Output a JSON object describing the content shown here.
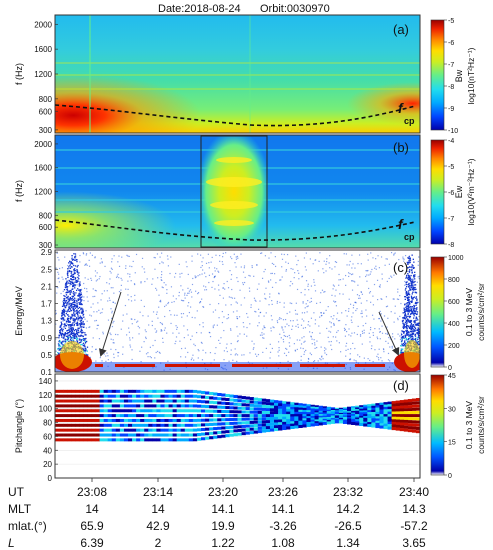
{
  "header": {
    "date": "Date:2018-08-24",
    "orbit": "Orbit:0030970"
  },
  "colors": {
    "colormap": [
      "#0000aa",
      "#0044ff",
      "#00aaff",
      "#22ddee",
      "#66ee88",
      "#ccee22",
      "#ffdd00",
      "#ff8800",
      "#ee2200",
      "#990000"
    ],
    "dashed_line": "#111111",
    "arrow": "#333333"
  },
  "chart_data": [
    {
      "panel": "(a)",
      "type": "heatmap",
      "ylabel": "f (Hz)",
      "y_ticks": [
        "2000",
        "1600",
        "1200",
        "800",
        "600",
        "300"
      ],
      "y_tick_values": [
        2000,
        1600,
        1200,
        800,
        600,
        300
      ],
      "ylim": [
        250,
        2150
      ],
      "x_range_minutes": [
        "23:08",
        "23:40"
      ],
      "curve_label": "f",
      "curve_subscript": "cp",
      "fcp_curve": {
        "x": [
          "23:08",
          "23:14",
          "23:20",
          "23:26",
          "23:32",
          "23:38",
          "23:40"
        ],
        "y": [
          700,
          620,
          490,
          400,
          470,
          620,
          700
        ]
      },
      "colorbar": {
        "title": "Bw",
        "unit": "log10(nT²Hz⁻¹)",
        "tick_labels": [
          "-5",
          "-6",
          "-7",
          "-8",
          "-9",
          "-10"
        ],
        "range": [
          -10,
          -5
        ]
      }
    },
    {
      "panel": "(b)",
      "type": "heatmap",
      "ylabel": "f (Hz)",
      "y_ticks": [
        "2000",
        "1600",
        "1200",
        "800",
        "600",
        "300"
      ],
      "y_tick_values": [
        2000,
        1600,
        1200,
        800,
        600,
        300
      ],
      "ylim": [
        250,
        2150
      ],
      "curve_label": "f",
      "curve_subscript": "cp",
      "highlight_box": {
        "x": [
          "23:20",
          "23:26"
        ]
      },
      "colorbar": {
        "title": "Ew",
        "unit": "log10(V²m⁻²Hz⁻¹)",
        "tick_labels": [
          "-4",
          "-5",
          "-6",
          "-7",
          "-8"
        ],
        "range": [
          -8,
          -4
        ]
      }
    },
    {
      "panel": "(c)",
      "type": "scatter",
      "ylabel": "Energy/MeV",
      "y_ticks": [
        "2.9",
        "2.5",
        "2.1",
        "1.7",
        "1.3",
        "0.9",
        "0.5",
        "0.1"
      ],
      "y_tick_values": [
        2.9,
        2.5,
        2.1,
        1.7,
        1.3,
        0.9,
        0.5,
        0.1
      ],
      "ylim": [
        0.1,
        2.95
      ],
      "colorbar": {
        "title": "0.1 to 3 MeV",
        "unit": "counts/s/cm²/sr",
        "tick_labels": [
          "1000",
          "800",
          "600",
          "400",
          "200",
          "0"
        ],
        "range": [
          0,
          1000
        ]
      }
    },
    {
      "panel": "(d)",
      "type": "scatter",
      "ylabel": "Pitchangle (°)",
      "y_ticks": [
        "140",
        "120",
        "100",
        "80",
        "60",
        "40",
        "20",
        "0"
      ],
      "y_tick_values": [
        140,
        120,
        100,
        80,
        60,
        40,
        20,
        0
      ],
      "ylim": [
        0,
        150
      ],
      "colorbar": {
        "title": "0.1 to 3 MeV",
        "unit": "counts/s/cm²/sr",
        "tick_labels": [
          "45",
          "30",
          "15",
          "0"
        ],
        "range": [
          0,
          50
        ]
      }
    }
  ],
  "bottom_table": {
    "rows": [
      {
        "label": "UT",
        "values": [
          "23:08",
          "23:14",
          "23:20",
          "23:26",
          "23:32",
          "23:40"
        ]
      },
      {
        "label": "MLT",
        "values": [
          "14",
          "14",
          "14.1",
          "14.1",
          "14.2",
          "14.3"
        ]
      },
      {
        "label": "mlat.(°)",
        "values": [
          "65.9",
          "42.9",
          "19.9",
          "-3.26",
          "-26.5",
          "-57.2"
        ]
      },
      {
        "label": "L",
        "values": [
          "6.39",
          "2",
          "1.22",
          "1.08",
          "1.34",
          "3.65"
        ]
      }
    ]
  }
}
